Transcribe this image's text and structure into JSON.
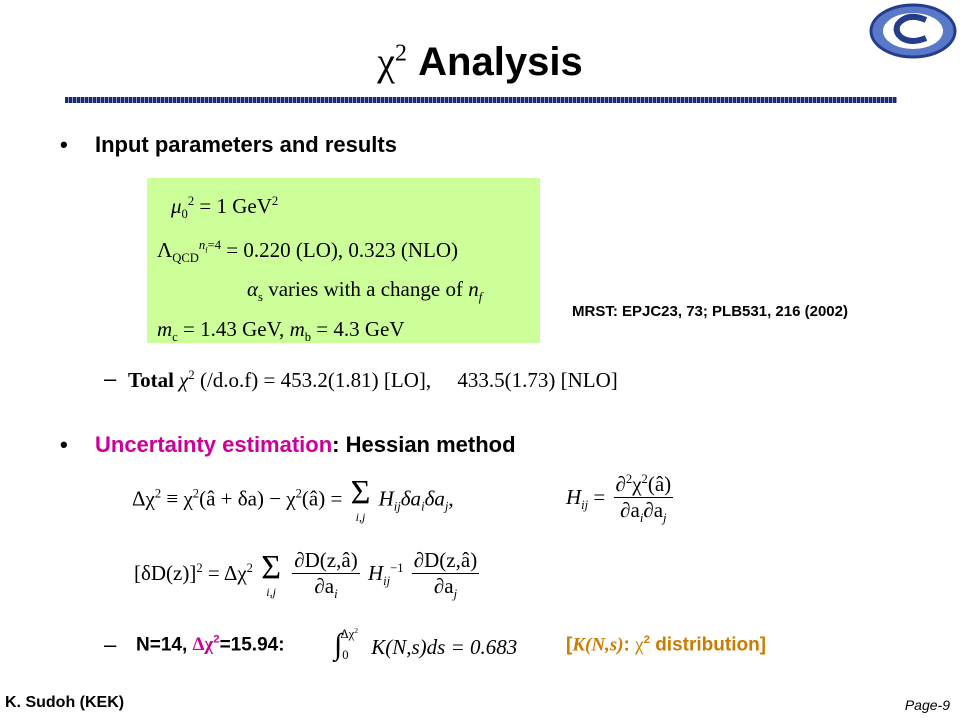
{
  "header": {
    "title_chi": "χ",
    "title_sup": "2",
    "title_text": "Analysis"
  },
  "bullet1": "Input parameters and results",
  "box": {
    "line1": [
      "μ",
      "0",
      "2",
      "= 1 GeV",
      "2"
    ],
    "line2": [
      "Λ",
      "QCD",
      "n",
      "f",
      "=4",
      "= 0.220 (LO), 0.323 (NLO)"
    ],
    "line3": [
      "α",
      "s",
      "varies with a change of",
      "n",
      "f"
    ],
    "line4": [
      "m",
      "c",
      "= 1.43 GeV,",
      "m",
      "b",
      "= 4.3 GeV"
    ]
  },
  "reference": "MRST: EPJC23, 73; PLB531, 216 (2002)",
  "total": [
    "Total",
    "χ",
    "2",
    "(/d.o.f) = 453.2(1.81)",
    "[LO],",
    "433.5(1.73)",
    "[NLO]"
  ],
  "bullet2": {
    "highlight": "Uncertainty estimation",
    "rest": ": Hessian method"
  },
  "eq1": {
    "lhs": [
      "Δχ",
      "2",
      "≡ χ",
      "2",
      "(â + δa) − χ",
      "2",
      "(â) =",
      "Σ",
      "i,j",
      "H",
      "ij",
      "δa",
      "i",
      "δa",
      "j",
      ","
    ],
    "hdef": [
      "H",
      "ij",
      "=",
      "∂",
      "2",
      "χ",
      "2",
      "(â)",
      "∂a",
      "i",
      "∂a",
      "j"
    ]
  },
  "eq2": [
    "[δD(z)]",
    "2",
    "= Δχ",
    "2",
    "Σ",
    "i,j",
    "∂D(z,â)",
    "∂a",
    "i",
    "H",
    "ij",
    "−1",
    "∂D(z,â)",
    "∂a",
    "j"
  ],
  "last": {
    "n": "N=14,",
    "dchi": [
      "Δχ",
      "2",
      "=15.94:"
    ],
    "integral": [
      "∫",
      "0",
      "Δχ",
      "2",
      "K(N,s)ds = 0.683"
    ],
    "note": [
      "[",
      "K(N,s)",
      ":",
      "χ",
      "2",
      "distribution]"
    ]
  },
  "footer": {
    "author": "K. Sudoh (KEK)",
    "page": "Page-9"
  }
}
